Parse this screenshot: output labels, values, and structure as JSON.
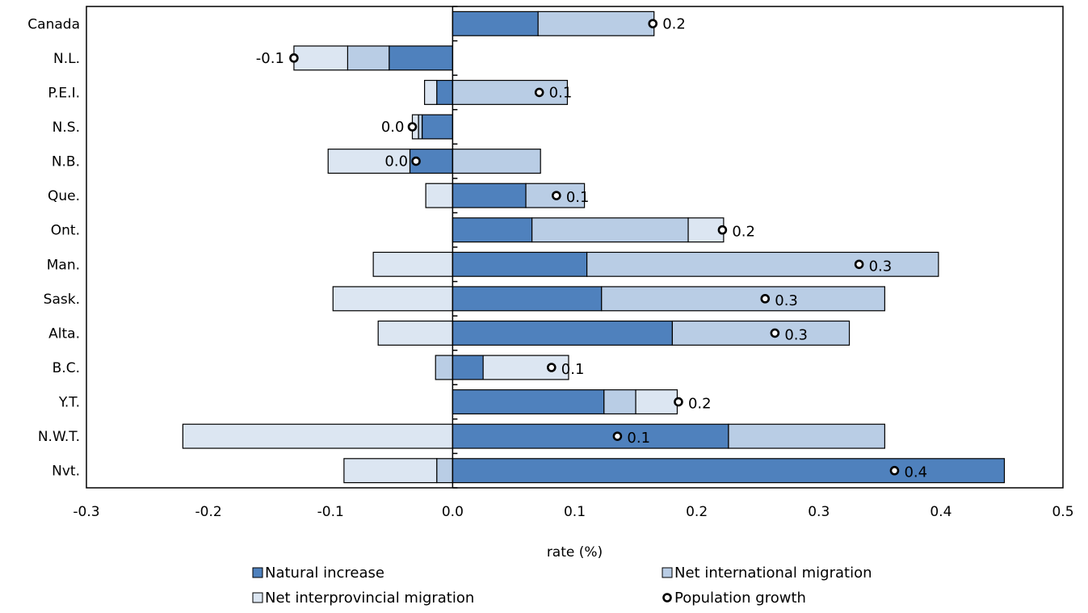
{
  "chart_data": {
    "type": "bar",
    "orientation": "horizontal",
    "stacked": true,
    "categories": [
      "Canada",
      "N.L.",
      "P.E.I.",
      "N.S.",
      "N.B.",
      "Que.",
      "Ont.",
      "Man.",
      "Sask.",
      "Alta.",
      "B.C.",
      "Y.T.",
      "N.W.T.",
      "Nvt."
    ],
    "series": [
      {
        "name": "Natural increase",
        "color": "#4f81bd",
        "values": [
          0.07,
          -0.052,
          -0.013,
          -0.025,
          -0.035,
          0.06,
          0.065,
          0.11,
          0.122,
          0.18,
          0.025,
          0.124,
          0.226,
          0.452
        ]
      },
      {
        "name": "Net international migration",
        "color": "#b9cde5",
        "values": [
          0.095,
          -0.034,
          0.094,
          -0.003,
          0.072,
          0.048,
          0.128,
          0.288,
          0.232,
          0.145,
          -0.014,
          0.026,
          0.128,
          -0.013
        ]
      },
      {
        "name": "Net interprovincial migration",
        "color": "#dce6f2",
        "values": [
          0.0,
          -0.044,
          -0.01,
          -0.005,
          -0.067,
          -0.022,
          0.029,
          -0.065,
          -0.098,
          -0.061,
          0.07,
          0.034,
          -0.221,
          -0.076
        ]
      }
    ],
    "population_growth": {
      "name": "Population growth",
      "values": [
        0.164,
        -0.13,
        0.071,
        -0.033,
        -0.03,
        0.085,
        0.221,
        0.333,
        0.256,
        0.264,
        0.081,
        0.185,
        0.135,
        0.362
      ],
      "labels": [
        "0.2",
        "-0.1",
        "0.1",
        "0.0",
        "0.0",
        "0.1",
        "0.2",
        "0.3",
        "0.3",
        "0.3",
        "0.1",
        "0.2",
        "0.1",
        "0.4"
      ]
    },
    "xlim": [
      -0.3,
      0.5
    ],
    "xticks": [
      -0.3,
      -0.2,
      -0.1,
      0.0,
      0.1,
      0.2,
      0.3,
      0.4,
      0.5
    ],
    "xtick_labels": [
      "-0.3",
      "-0.2",
      "-0.1",
      "0.0",
      "0.1",
      "0.2",
      "0.3",
      "0.4",
      "0.5"
    ],
    "xlabel": "rate (%)",
    "ylabel": "",
    "title": "",
    "grid": false,
    "legend_position": "bottom"
  }
}
